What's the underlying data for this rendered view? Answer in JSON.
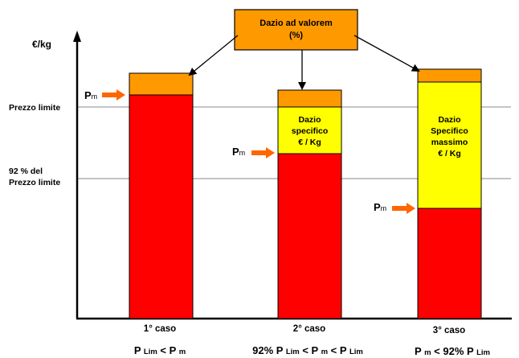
{
  "colors": {
    "red": "#ff0000",
    "yellow": "#ffff00",
    "orange": "#ff9900",
    "arrow_orange": "#ff6600",
    "axis": "#000000",
    "guide": "#888888"
  },
  "y_axis_label": "€/kg",
  "guides": {
    "prezzo_limite": "Prezzo limite",
    "pct92_line1": "92 % del",
    "pct92_line2": "Prezzo limite"
  },
  "callout": {
    "line1": "Dazio ad valorem",
    "line2": "(%)"
  },
  "pm": {
    "p": "P",
    "sub": "m"
  },
  "cases": [
    {
      "title": "1° caso",
      "cond_parts": [
        "P ",
        "Lim",
        " < P ",
        "m"
      ],
      "duty_lines": []
    },
    {
      "title": "2° caso",
      "cond_parts": [
        "92% P ",
        "Lim",
        " < P ",
        "m",
        " < P ",
        "Lim"
      ],
      "duty_lines": [
        "Dazio",
        "specifico",
        "€ / Kg"
      ]
    },
    {
      "title": "3° caso",
      "cond_parts": [
        "P ",
        "m",
        " < 92% P ",
        "Lim"
      ],
      "duty_lines": [
        "Dazio",
        "Specifico",
        "massimo",
        "€ / Kg"
      ]
    }
  ]
}
